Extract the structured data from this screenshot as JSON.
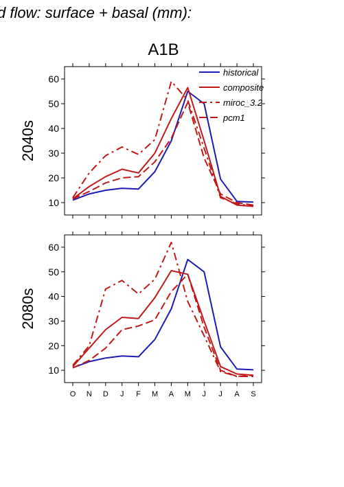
{
  "figure": {
    "suptitle": "d flow: surface + basal (mm):",
    "scenario": "A1B"
  },
  "colors": {
    "historical": "#1a1ab4",
    "projection": "#c01818"
  },
  "chart_data": [
    {
      "type": "line",
      "panel_label": "2040s",
      "categories": [
        "O",
        "N",
        "D",
        "J",
        "F",
        "M",
        "A",
        "M",
        "J",
        "J",
        "A",
        "S"
      ],
      "ylim": [
        5,
        65
      ],
      "yticks": [
        10,
        20,
        30,
        40,
        50,
        60
      ],
      "legend_placement": "top-right",
      "series": [
        {
          "name": "historical",
          "style": "solid",
          "color": "#1a1ab4",
          "values": [
            11,
            13.5,
            15,
            15.8,
            15.5,
            22.5,
            35,
            55,
            50,
            19.5,
            10.5,
            10.2
          ]
        },
        {
          "name": "composite",
          "style": "solid",
          "color": "#c01818",
          "values": [
            11.5,
            16.5,
            20.5,
            23.5,
            22,
            30,
            44,
            56.5,
            35,
            12.5,
            9,
            8.5
          ]
        },
        {
          "name": "miroc_3.2",
          "style": "dashdot",
          "color": "#c01818",
          "values": [
            12,
            22,
            29,
            32.5,
            29.5,
            35.5,
            59,
            51.5,
            32,
            12,
            9.5,
            8.5
          ]
        },
        {
          "name": "pcm1",
          "style": "dashed",
          "color": "#c01818",
          "values": [
            11.5,
            14.5,
            18,
            20,
            20.5,
            26.5,
            36,
            50.5,
            28,
            13.5,
            10,
            9
          ]
        }
      ]
    },
    {
      "type": "line",
      "panel_label": "2080s",
      "categories": [
        "O",
        "N",
        "D",
        "J",
        "F",
        "M",
        "A",
        "M",
        "J",
        "J",
        "A",
        "S"
      ],
      "ylim": [
        5,
        65
      ],
      "yticks": [
        10,
        20,
        30,
        40,
        50,
        60
      ],
      "series": [
        {
          "name": "historical",
          "style": "solid",
          "color": "#1a1ab4",
          "values": [
            11,
            13.5,
            15,
            15.8,
            15.5,
            22.5,
            35,
            55,
            50,
            19.5,
            10.5,
            10.2
          ]
        },
        {
          "name": "composite",
          "style": "solid",
          "color": "#c01818",
          "values": [
            11.5,
            19,
            26.5,
            31.5,
            31,
            39.5,
            50.5,
            49,
            30,
            11.5,
            8.5,
            8
          ]
        },
        {
          "name": "miroc_3.2",
          "style": "dashdot",
          "color": "#c01818",
          "values": [
            12,
            20,
            43,
            46.5,
            41,
            47,
            62,
            38,
            24,
            9.5,
            7.5,
            7.5
          ]
        },
        {
          "name": "pcm1",
          "style": "dashed",
          "color": "#c01818",
          "values": [
            11,
            14,
            19,
            26.5,
            28,
            30.5,
            42,
            49,
            27.5,
            10,
            7.5,
            8
          ]
        }
      ]
    }
  ]
}
